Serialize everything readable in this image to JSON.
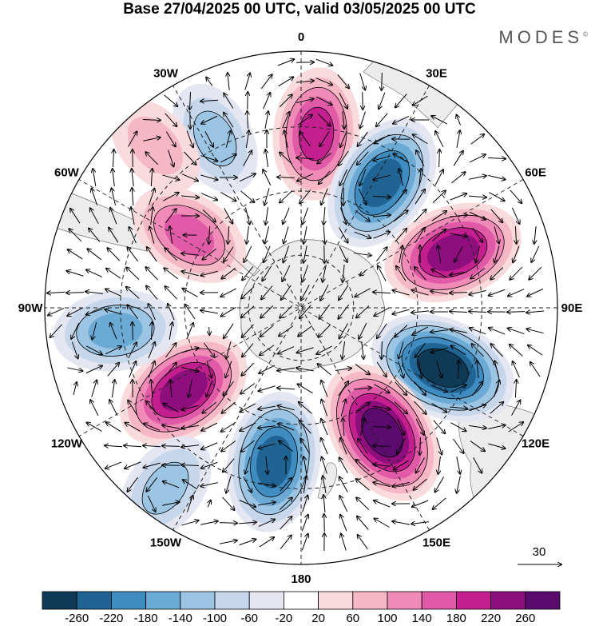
{
  "title": "Base 27/04/2025 00 UTC, valid 03/05/2025 00 UTC",
  "brand": "MODES",
  "brand_mark": "©",
  "meridians": [
    {
      "label": "0",
      "lon": 0
    },
    {
      "label": "30E",
      "lon": 30
    },
    {
      "label": "60E",
      "lon": 60
    },
    {
      "label": "90E",
      "lon": 90
    },
    {
      "label": "120E",
      "lon": 120
    },
    {
      "label": "150E",
      "lon": 150
    },
    {
      "label": "180",
      "lon": 180
    },
    {
      "label": "150W",
      "lon": 210
    },
    {
      "label": "120W",
      "lon": 240
    },
    {
      "label": "90W",
      "lon": 270
    },
    {
      "label": "60W",
      "lon": 300
    },
    {
      "label": "30W",
      "lon": 330
    }
  ],
  "vector_ref": "30",
  "colorbar": {
    "colors": [
      "#0f3a56",
      "#1f6493",
      "#3e8cc0",
      "#6aaad5",
      "#9cc4e3",
      "#c6d7ec",
      "#e4e6f2",
      "#ffffff",
      "#f9dadd",
      "#f6b7c6",
      "#f08ab6",
      "#e05aa7",
      "#c41f8f",
      "#8e0e7e",
      "#5b0a6e"
    ],
    "labels": [
      "-260",
      "-220",
      "-180",
      "-140",
      "-100",
      "-60",
      "-20",
      "20",
      "60",
      "100",
      "140",
      "180",
      "220",
      "260"
    ]
  },
  "anomaly_centers": [
    {
      "name": "pos-0",
      "lon": 5,
      "colat": 0.68,
      "value": 180
    },
    {
      "name": "neg-30E",
      "lon": 33,
      "colat": 0.58,
      "value": -220
    },
    {
      "name": "pos-70E",
      "lon": 70,
      "colat": 0.63,
      "value": 220
    },
    {
      "name": "neg-115E",
      "lon": 113,
      "colat": 0.6,
      "value": -260
    },
    {
      "name": "pos-145E",
      "lon": 147,
      "colat": 0.58,
      "value": 260
    },
    {
      "name": "neg-190",
      "lon": 190,
      "colat": 0.61,
      "value": -220
    },
    {
      "name": "pos-235",
      "lon": 235,
      "colat": 0.56,
      "value": 220
    },
    {
      "name": "neg-263",
      "lon": 263,
      "colat": 0.73,
      "value": -140
    },
    {
      "name": "pos-303",
      "lon": 303,
      "colat": 0.52,
      "value": 140
    },
    {
      "name": "neg-330",
      "lon": 333,
      "colat": 0.74,
      "value": -100
    },
    {
      "name": "neg-218",
      "lon": 217,
      "colat": 0.88,
      "value": -100
    },
    {
      "name": "pos-315",
      "lon": 318,
      "colat": 0.85,
      "value": 60
    }
  ]
}
